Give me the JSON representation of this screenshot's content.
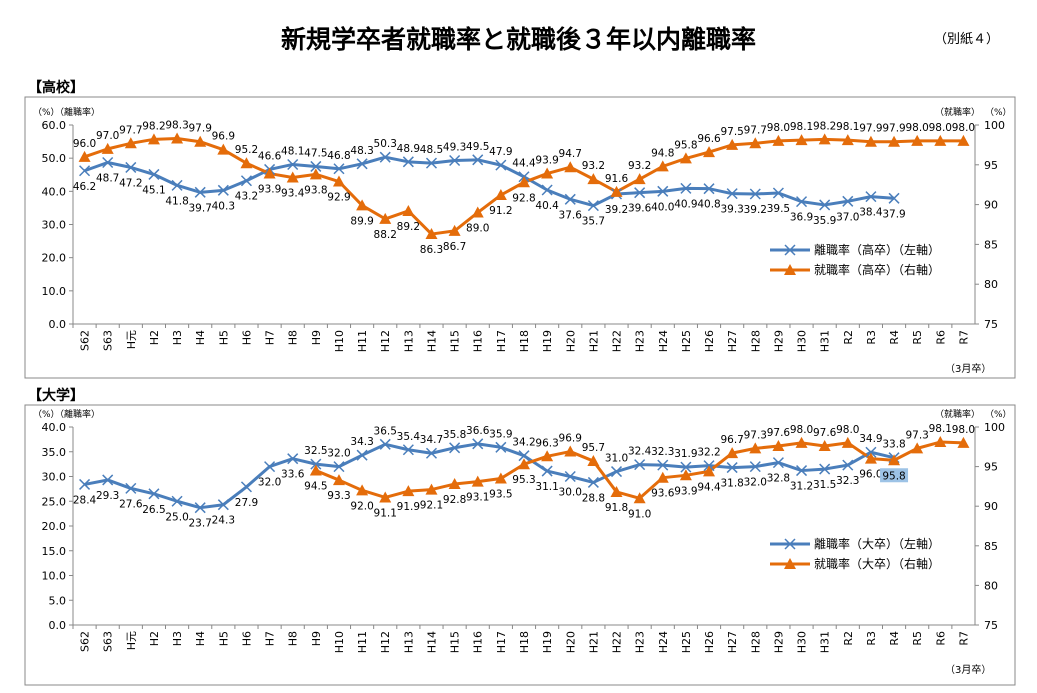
{
  "title": "新規学卒者就職率と就職後３年以内離職率",
  "attachment": "（別紙４）",
  "chart_data": [
    {
      "type": "line",
      "section_label": "【高校】",
      "left_axis_unit": "（%）",
      "left_axis_label": "（離職率）",
      "right_axis_unit": "（%）",
      "right_axis_label": "（就職率）",
      "x_note": "（3月卒）",
      "ylim_left": [
        0,
        60
      ],
      "yticks_left": [
        "0.0",
        "10.0",
        "20.0",
        "30.0",
        "40.0",
        "50.0",
        "60.0"
      ],
      "ylim_right": [
        75,
        100
      ],
      "yticks_right": [
        "75",
        "80",
        "85",
        "90",
        "95",
        "100"
      ],
      "grid": false,
      "legend_position": "right-middle",
      "categories": [
        "S62",
        "S63",
        "H元",
        "H2",
        "H3",
        "H4",
        "H5",
        "H6",
        "H7",
        "H8",
        "H9",
        "H10",
        "H11",
        "H12",
        "H13",
        "H14",
        "H15",
        "H16",
        "H17",
        "H18",
        "H19",
        "H20",
        "H21",
        "H22",
        "H23",
        "H24",
        "H25",
        "H26",
        "H27",
        "H28",
        "H29",
        "H30",
        "H31",
        "R2",
        "R3",
        "R4",
        "R5",
        "R6",
        "R7"
      ],
      "series": [
        {
          "name": "離職率（高卒）（左軸）",
          "axis": "left",
          "color": "#4a7ebb",
          "marker": "x",
          "values": [
            46.2,
            48.7,
            47.2,
            45.1,
            41.8,
            39.7,
            40.3,
            43.2,
            46.6,
            48.1,
            47.5,
            46.8,
            48.3,
            50.3,
            48.9,
            48.5,
            49.3,
            49.5,
            47.9,
            44.4,
            40.4,
            37.6,
            35.7,
            39.2,
            39.6,
            40.0,
            40.9,
            40.8,
            39.3,
            39.2,
            39.5,
            36.9,
            35.9,
            37.0,
            38.4,
            37.9,
            null,
            null,
            null
          ]
        },
        {
          "name": "就職率（高卒）（右軸）",
          "axis": "right",
          "color": "#e46c0a",
          "marker": "triangle",
          "values": [
            96.0,
            97.0,
            97.7,
            98.2,
            98.3,
            97.9,
            96.9,
            95.2,
            93.9,
            93.4,
            93.8,
            92.9,
            89.9,
            88.2,
            89.2,
            86.3,
            86.7,
            89.0,
            91.2,
            92.8,
            93.9,
            94.7,
            93.2,
            91.6,
            93.2,
            94.8,
            95.8,
            96.6,
            97.5,
            97.7,
            98.0,
            98.1,
            98.2,
            98.1,
            97.9,
            97.9,
            98.0,
            98.0,
            98.0
          ]
        }
      ]
    },
    {
      "type": "line",
      "section_label": "【大学】",
      "left_axis_unit": "（%）",
      "left_axis_label": "（離職率）",
      "right_axis_unit": "（%）",
      "right_axis_label": "（就職率）",
      "x_note": "（3月卒）",
      "ylim_left": [
        0,
        40
      ],
      "yticks_left": [
        "0.0",
        "5.0",
        "10.0",
        "15.0",
        "20.0",
        "25.0",
        "30.0",
        "35.0",
        "40.0"
      ],
      "ylim_right": [
        75,
        100
      ],
      "yticks_right": [
        "75",
        "80",
        "85",
        "90",
        "95",
        "100"
      ],
      "grid": false,
      "legend_position": "right-middle",
      "highlighted_label": "95.8",
      "categories": [
        "S62",
        "S63",
        "H元",
        "H2",
        "H3",
        "H4",
        "H5",
        "H6",
        "H7",
        "H8",
        "H9",
        "H10",
        "H11",
        "H12",
        "H13",
        "H14",
        "H15",
        "H16",
        "H17",
        "H18",
        "H19",
        "H20",
        "H21",
        "H22",
        "H23",
        "H24",
        "H25",
        "H26",
        "H27",
        "H28",
        "H29",
        "H30",
        "H31",
        "R2",
        "R3",
        "R4",
        "R5",
        "R6",
        "R7"
      ],
      "series": [
        {
          "name": "離職率（大卒）（左軸）",
          "axis": "left",
          "color": "#4a7ebb",
          "marker": "x",
          "values": [
            28.4,
            29.3,
            27.6,
            26.5,
            25.0,
            23.7,
            24.3,
            27.9,
            32.0,
            33.6,
            32.5,
            32.0,
            34.3,
            36.5,
            35.4,
            34.7,
            35.8,
            36.6,
            35.9,
            34.2,
            31.1,
            30.0,
            28.8,
            31.0,
            32.4,
            32.3,
            31.9,
            32.2,
            31.8,
            32.0,
            32.8,
            31.2,
            31.5,
            32.3,
            34.9,
            33.8,
            null,
            null,
            null
          ]
        },
        {
          "name": "就職率（大卒）（右軸）",
          "axis": "right",
          "color": "#e46c0a",
          "marker": "triangle",
          "values": [
            null,
            null,
            null,
            null,
            null,
            null,
            null,
            null,
            null,
            null,
            94.5,
            93.3,
            92.0,
            91.1,
            91.9,
            92.1,
            92.8,
            93.1,
            93.5,
            95.3,
            96.3,
            96.9,
            95.7,
            91.8,
            91.0,
            93.6,
            93.9,
            94.4,
            96.7,
            97.3,
            97.6,
            98.0,
            97.6,
            98.0,
            96.0,
            95.8,
            97.3,
            98.1,
            98.0
          ]
        }
      ]
    }
  ]
}
